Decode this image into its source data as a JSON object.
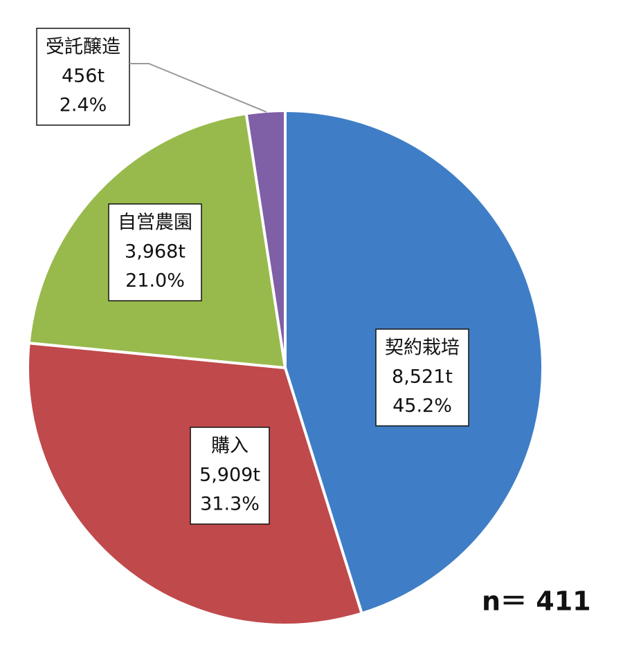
{
  "chart_data": {
    "type": "pie",
    "categories": [
      "契約栽培",
      "購入",
      "自営農園",
      "受託醸造"
    ],
    "values": [
      8521,
      5909,
      3968,
      456
    ],
    "value_labels": [
      "8,521t",
      "5,909t",
      "3,968t",
      "456t"
    ],
    "percent_labels": [
      "45.2%",
      "31.3%",
      "21.0%",
      "2.4%"
    ],
    "colors": [
      "#3f7ec6",
      "#c0494b",
      "#98ba4c",
      "#7f5fa6"
    ],
    "annotation": "n＝ 411"
  }
}
